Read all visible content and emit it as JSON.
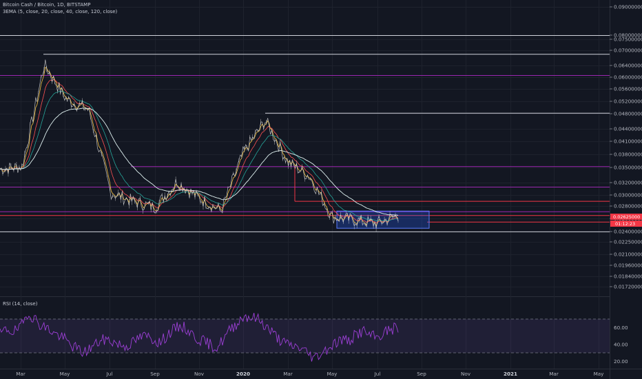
{
  "header": {
    "symbol_line": "Bitcoin Cash / Bitcoin, 1D, BITSTAMP",
    "indicator_line": "3EMA (5, close, 20, close, 40, close, 120, close)"
  },
  "rsi_panel": {
    "label": "RSI (14, close)",
    "levels": [
      70,
      30
    ],
    "ticks": [
      "60.00",
      "40.00",
      "20.00"
    ]
  },
  "price_axis": {
    "ticks": [
      "0.09000000",
      "0.08000000",
      "0.07500000",
      "0.07000000",
      "0.06400000",
      "0.06000000",
      "0.05600000",
      "0.05200000",
      "0.04800000",
      "0.04400000",
      "0.04100000",
      "0.03800000",
      "0.03500000",
      "0.03200000",
      "0.03000000",
      "0.02800000",
      "0.02600000",
      "0.02400000",
      "0.02250000",
      "0.02100000",
      "0.01960000",
      "0.01840000",
      "0.01720000"
    ],
    "current_price_tag": "0.02625000",
    "secondary_price_tag": "01:12:23"
  },
  "time_axis": {
    "labels": [
      "Mar",
      "May",
      "Jul",
      "Sep",
      "Nov",
      "2020",
      "Mar",
      "May",
      "Jul",
      "Sep",
      "Nov",
      "2021",
      "Mar",
      "May"
    ],
    "bold_labels": [
      "2020",
      "2021"
    ]
  },
  "colors": {
    "background": "#131722",
    "candle_up": "#d8d8d8",
    "candle_down": "#d8d8d8",
    "ema_fast": "#f5c242",
    "ema_mid": "#ff5252",
    "ema_slow": "#26a69a",
    "ema_long": "#e0f2f1",
    "level_white": "#d1d4dc",
    "level_purple": "#9c27b0",
    "level_red": "#f23645",
    "range_box": "#2962ff",
    "rsi_line": "#9c3fd6",
    "rsi_band": "#7e57c2"
  },
  "chart_data": {
    "type": "line",
    "title": "Bitcoin Cash / Bitcoin, 1D, BITSTAMP",
    "xlabel": "",
    "ylabel": "",
    "ylim": [
      0.0165,
      0.092
    ],
    "scale": "log",
    "horizontal_levels": [
      {
        "value": 0.076,
        "color": "white"
      },
      {
        "value": 0.068,
        "color": "white"
      },
      {
        "value": 0.06,
        "color": "purple"
      },
      {
        "value": 0.048,
        "color": "white"
      },
      {
        "value": 0.035,
        "color": "purple"
      },
      {
        "value": 0.031,
        "color": "purple"
      },
      {
        "value": 0.0285,
        "color": "red"
      },
      {
        "value": 0.0268,
        "color": "purple"
      },
      {
        "value": 0.0262,
        "color": "red"
      },
      {
        "value": 0.0252,
        "color": "red"
      },
      {
        "value": 0.0238,
        "color": "white"
      }
    ],
    "range_box": {
      "low": 0.0243,
      "high": 0.0269
    },
    "series": [
      {
        "name": "Bitcoin Cash / Bitcoin",
        "x": [
          "2019-02",
          "2019-03",
          "2019-04",
          "2019-05",
          "2019-06",
          "2019-07",
          "2019-08",
          "2019-09",
          "2019-10",
          "2019-11",
          "2019-12",
          "2020-01",
          "2020-02",
          "2020-03",
          "2020-04",
          "2020-05",
          "2020-06",
          "2020-07",
          "2020-08"
        ],
        "values": [
          0.0345,
          0.035,
          0.064,
          0.052,
          0.049,
          0.03,
          0.0285,
          0.0275,
          0.032,
          0.029,
          0.027,
          0.038,
          0.046,
          0.036,
          0.033,
          0.026,
          0.0255,
          0.025,
          0.0262
        ]
      }
    ],
    "rsi_values": [
      52,
      58,
      55,
      60,
      78,
      70,
      62,
      58,
      52,
      48,
      40,
      35,
      30,
      36,
      42,
      46,
      44,
      40,
      38,
      42,
      48,
      50,
      46,
      42,
      52,
      58,
      62,
      56,
      48,
      44,
      40,
      36,
      46,
      58,
      66,
      74,
      72,
      70,
      62,
      54,
      46,
      40,
      38,
      36,
      30,
      24,
      30,
      36,
      42,
      46,
      44,
      52,
      56,
      50,
      48,
      54,
      58,
      60
    ]
  }
}
